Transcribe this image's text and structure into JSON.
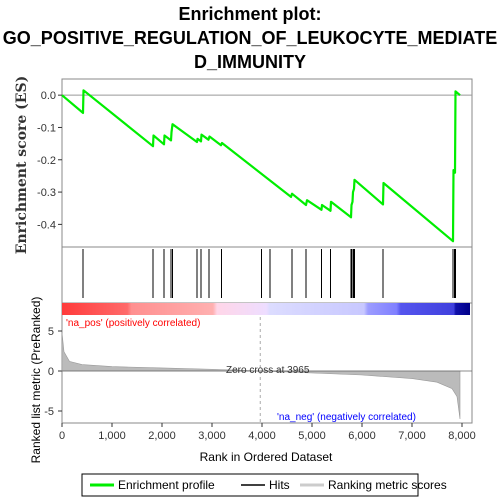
{
  "title_lines": [
    "Enrichment plot:",
    "GO_POSITIVE_REGULATION_OF_LEUKOCYTE_MEDIATE",
    "D_IMMUNITY"
  ],
  "chart_data": {
    "type": "line",
    "es_ylabel": "Enrichment score (ES)",
    "metric_ylabel": "Ranked list metric (PreRanked)",
    "xlabel": "Rank in Ordered Dataset",
    "xlim": [
      0,
      8200
    ],
    "es_ylim": [
      -0.47,
      0.05
    ],
    "metric_ylim": [
      -6.5,
      8.5
    ],
    "x_ticks": [
      0,
      1000,
      2000,
      3000,
      4000,
      5000,
      6000,
      7000,
      8000
    ],
    "x_tick_labels": [
      "0",
      "1,000",
      "2,000",
      "3,000",
      "4,000",
      "5,000",
      "6,000",
      "7,000",
      "8,000"
    ],
    "es_ticks": [
      0.0,
      -0.1,
      -0.2,
      -0.3,
      -0.4
    ],
    "es_tick_labels": [
      "0.0",
      "-0.1",
      "-0.2",
      "-0.3",
      "-0.4"
    ],
    "metric_ticks": [
      5,
      0,
      -5
    ],
    "metric_tick_labels": [
      "5",
      "0",
      "-5"
    ],
    "enrichment_profile": [
      [
        0,
        0.0
      ],
      [
        420,
        -0.055
      ],
      [
        430,
        0.015
      ],
      [
        1820,
        -0.158
      ],
      [
        1830,
        -0.125
      ],
      [
        2040,
        -0.152
      ],
      [
        2050,
        -0.125
      ],
      [
        2180,
        -0.14
      ],
      [
        2190,
        -0.115
      ],
      [
        2210,
        -0.09
      ],
      [
        2700,
        -0.145
      ],
      [
        2710,
        -0.135
      ],
      [
        2780,
        -0.143
      ],
      [
        2790,
        -0.122
      ],
      [
        2930,
        -0.138
      ],
      [
        2950,
        -0.128
      ],
      [
        3180,
        -0.155
      ],
      [
        3200,
        -0.148
      ],
      [
        4580,
        -0.315
      ],
      [
        4600,
        -0.305
      ],
      [
        4880,
        -0.34
      ],
      [
        4900,
        -0.325
      ],
      [
        5190,
        -0.355
      ],
      [
        5200,
        -0.34
      ],
      [
        5370,
        -0.358
      ],
      [
        5380,
        -0.33
      ],
      [
        5780,
        -0.378
      ],
      [
        5790,
        -0.34
      ],
      [
        5810,
        -0.33
      ],
      [
        5820,
        -0.3
      ],
      [
        5840,
        -0.29
      ],
      [
        5850,
        -0.262
      ],
      [
        6420,
        -0.338
      ],
      [
        6430,
        -0.272
      ],
      [
        7820,
        -0.452
      ],
      [
        7830,
        -0.232
      ],
      [
        7860,
        -0.24
      ],
      [
        7870,
        0.012
      ],
      [
        7960,
        0.0
      ]
    ],
    "hits": [
      420,
      1820,
      2040,
      2180,
      2210,
      2700,
      2780,
      2940,
      3190,
      3990,
      4160,
      4600,
      4880,
      5190,
      5370,
      5780,
      5800,
      5830,
      5850,
      6420,
      7820,
      7850,
      7870
    ],
    "ranked_metric": [
      [
        0,
        4.8
      ],
      [
        40,
        2.4
      ],
      [
        150,
        1.2
      ],
      [
        400,
        0.8
      ],
      [
        1000,
        0.55
      ],
      [
        2000,
        0.38
      ],
      [
        3000,
        0.22
      ],
      [
        3965,
        0.0
      ],
      [
        5000,
        -0.25
      ],
      [
        6000,
        -0.5
      ],
      [
        7000,
        -0.95
      ],
      [
        7500,
        -1.4
      ],
      [
        7800,
        -2.2
      ],
      [
        7900,
        -3.2
      ],
      [
        7960,
        -6.0
      ]
    ],
    "zero_cross": 3965,
    "annotations": {
      "zero_cross_label": "Zero cross at 3965",
      "pos_label": "'na_pos' (positively correlated)",
      "neg_label": "'na_neg' (negatively correlated)"
    },
    "legend": [
      "Enrichment profile",
      "Hits",
      "Ranking metric scores"
    ],
    "colors": {
      "profile": "#00ee00",
      "hits": "#000000",
      "metric_fill": "#bbbbbb",
      "zero_line": "#aaaaaa",
      "pos_text": "#ff0000",
      "neg_text": "#0000ff"
    }
  }
}
